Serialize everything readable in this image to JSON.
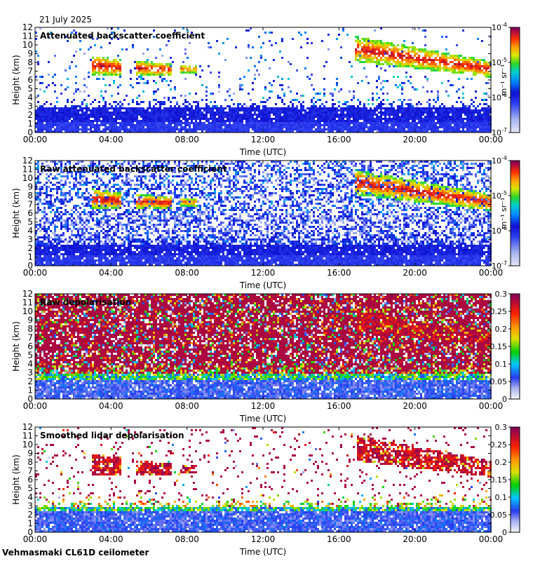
{
  "date": "21 July 2025",
  "instrument": "Vehmasmaki CL61D ceilometer",
  "chart_data": [
    {
      "type": "heatmap",
      "title": "Attenuated backscatter coefficient",
      "xlabel": "Time (UTC)",
      "ylabel": "Height (km)",
      "xticks": [
        "00:00",
        "04:00",
        "08:00",
        "12:00",
        "16:00",
        "20:00",
        "00:00"
      ],
      "xlim_hours": [
        0,
        24
      ],
      "yticks": [
        "0",
        "1",
        "2",
        "3",
        "4",
        "5",
        "6",
        "7",
        "8",
        "9",
        "10",
        "11",
        "12"
      ],
      "ylim": [
        0,
        12
      ],
      "colorbar": {
        "scale": "log",
        "range": [
          1e-07,
          0.0001
        ],
        "ticks": [
          {
            "base": "10",
            "exp": "-7"
          },
          {
            "base": "10",
            "exp": "-6"
          },
          {
            "base": "10",
            "exp": "-5"
          },
          {
            "base": "10",
            "exp": "-4"
          }
        ],
        "unit": "m⁻¹ sr⁻¹"
      },
      "noise": "low",
      "boundary_layer_top_km": 2.8,
      "cloud_features": [
        {
          "start_h": 3.0,
          "end_h": 4.5,
          "base_km": 6.5,
          "top_km": 8.8,
          "intensity": "high"
        },
        {
          "start_h": 5.3,
          "end_h": 7.2,
          "base_km": 6.5,
          "top_km": 8.2,
          "intensity": "high"
        },
        {
          "start_h": 7.6,
          "end_h": 8.5,
          "base_km": 6.8,
          "top_km": 7.8,
          "intensity": "medium"
        },
        {
          "start_h": 16.8,
          "end_h": 24.0,
          "base_km": 6.3,
          "top_km": 11.0,
          "intensity": "high"
        }
      ]
    },
    {
      "type": "heatmap",
      "title": "Raw attenuated backscatter coefficient",
      "xlabel": "Time (UTC)",
      "ylabel": "Height (km)",
      "xticks": [
        "00:00",
        "04:00",
        "08:00",
        "12:00",
        "16:00",
        "20:00",
        "00:00"
      ],
      "xlim_hours": [
        0,
        24
      ],
      "yticks": [
        "0",
        "1",
        "2",
        "3",
        "4",
        "5",
        "6",
        "7",
        "8",
        "9",
        "10",
        "11",
        "12"
      ],
      "ylim": [
        0,
        12
      ],
      "colorbar": {
        "scale": "log",
        "range": [
          1e-07,
          0.0001
        ],
        "ticks": [
          {
            "base": "10",
            "exp": "-7"
          },
          {
            "base": "10",
            "exp": "-6"
          },
          {
            "base": "10",
            "exp": "-5"
          },
          {
            "base": "10",
            "exp": "-4"
          }
        ],
        "unit": "m⁻¹ sr⁻¹"
      },
      "noise": "high",
      "boundary_layer_top_km": 2.5,
      "cloud_features": [
        {
          "start_h": 3.0,
          "end_h": 4.5,
          "base_km": 6.5,
          "top_km": 8.8,
          "intensity": "high"
        },
        {
          "start_h": 5.3,
          "end_h": 7.2,
          "base_km": 6.5,
          "top_km": 8.2,
          "intensity": "high"
        },
        {
          "start_h": 7.6,
          "end_h": 8.5,
          "base_km": 6.8,
          "top_km": 7.8,
          "intensity": "medium"
        },
        {
          "start_h": 16.8,
          "end_h": 24.0,
          "base_km": 6.3,
          "top_km": 11.0,
          "intensity": "high"
        }
      ]
    },
    {
      "type": "heatmap",
      "title": "Raw depolarisation",
      "xlabel": "Time (UTC)",
      "ylabel": "Height (km)",
      "xticks": [
        "00:00",
        "04:00",
        "08:00",
        "12:00",
        "16:00",
        "20:00",
        "00:00"
      ],
      "xlim_hours": [
        0,
        24
      ],
      "yticks": [
        "0",
        "1",
        "2",
        "3",
        "4",
        "5",
        "6",
        "7",
        "8",
        "9",
        "10",
        "11",
        "12"
      ],
      "ylim": [
        0,
        12
      ],
      "colorbar": {
        "scale": "linear",
        "range": [
          0,
          0.3
        ],
        "ticks": [
          "0",
          "0.05",
          "0.1",
          "0.15",
          "0.2",
          "0.25",
          "0.3"
        ]
      },
      "noise": "very high",
      "boundary_layer_top_km": 2.8,
      "cloud_features": [
        {
          "start_h": 17.0,
          "end_h": 24.0,
          "base_km": 6.0,
          "top_km": 10.0,
          "intensity": "medium"
        }
      ]
    },
    {
      "type": "heatmap",
      "title": "Smoothed lidar depolarisation",
      "xlabel": "Time (UTC)",
      "ylabel": "Height (km)",
      "xticks": [
        "00:00",
        "04:00",
        "08:00",
        "12:00",
        "16:00",
        "20:00",
        "00:00"
      ],
      "xlim_hours": [
        0,
        24
      ],
      "yticks": [
        "0",
        "1",
        "2",
        "3",
        "4",
        "5",
        "6",
        "7",
        "8",
        "9",
        "10",
        "11",
        "12"
      ],
      "ylim": [
        0,
        12
      ],
      "colorbar": {
        "scale": "linear",
        "range": [
          0,
          0.3
        ],
        "ticks": [
          "0",
          "0.05",
          "0.1",
          "0.15",
          "0.2",
          "0.25",
          "0.3"
        ]
      },
      "noise": "low",
      "boundary_layer_top_km": 3.0,
      "cloud_features": [
        {
          "start_h": 3.0,
          "end_h": 4.5,
          "base_km": 6.6,
          "top_km": 9.0,
          "intensity": "high"
        },
        {
          "start_h": 5.3,
          "end_h": 7.2,
          "base_km": 6.5,
          "top_km": 8.2,
          "intensity": "high"
        },
        {
          "start_h": 7.6,
          "end_h": 8.5,
          "base_km": 6.8,
          "top_km": 7.8,
          "intensity": "high"
        },
        {
          "start_h": 17.0,
          "end_h": 24.0,
          "base_km": 6.3,
          "top_km": 11.0,
          "intensity": "high"
        }
      ]
    }
  ]
}
